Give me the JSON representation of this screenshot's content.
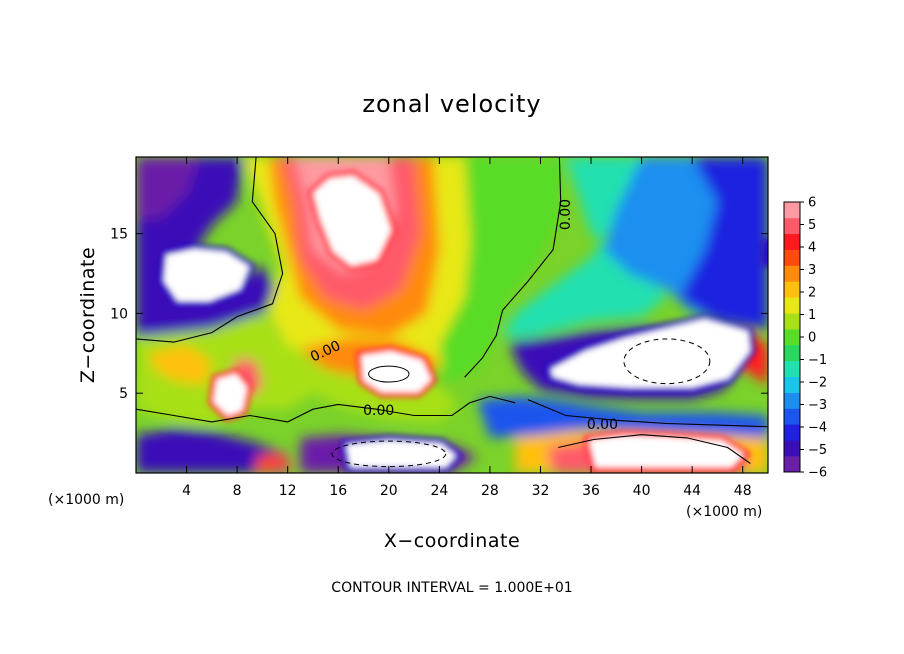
{
  "chart_data": {
    "type": "heatmap",
    "title": "zonal velocity",
    "xlabel": "X−coordinate",
    "ylabel": "Z−coordinate",
    "x_scale_note": "(×1000 m)",
    "z_scale_note": "(×1000 m)",
    "footer": "CONTOUR INTERVAL = 1.000E+01",
    "xlim": [
      0,
      50
    ],
    "ylim": [
      0,
      19.8
    ],
    "x_ticks": [
      4,
      8,
      12,
      16,
      20,
      24,
      28,
      32,
      36,
      40,
      44,
      48
    ],
    "y_ticks": [
      5,
      10,
      15
    ],
    "colorbar": {
      "min": -6,
      "max": 6,
      "ticks": [
        6,
        5,
        4,
        3,
        2,
        1,
        0,
        -1,
        -2,
        -3,
        -4,
        -5,
        -6
      ],
      "colors": [
        "#6a1fa8",
        "#3a0fb8",
        "#1f20e0",
        "#1b55ee",
        "#1e8ff0",
        "#19c6ea",
        "#20e0b0",
        "#2ad860",
        "#58dc28",
        "#a8e018",
        "#e8e818",
        "#ffc010",
        "#ff8a0c",
        "#ff4a10",
        "#ff1a20",
        "#ff5a6a",
        "#ff9aa2"
      ]
    },
    "contour_labels": [
      {
        "text": "0.00",
        "x": 15,
        "y": 7.6,
        "rotation": -25
      },
      {
        "text": "0.00",
        "x": 19.2,
        "y": 3.9,
        "rotation": 0
      },
      {
        "text": "0.00",
        "x": 36.9,
        "y": 3.0,
        "rotation": 0
      },
      {
        "text": "0.00",
        "x": 34.0,
        "y": 16.2,
        "rotation": -90
      }
    ],
    "field_regions": [
      {
        "v": -4.6,
        "pts": [
          [
            0,
            19.8
          ],
          [
            8.5,
            19.8
          ],
          [
            8,
            17
          ],
          [
            6,
            15.5
          ],
          [
            4,
            13
          ],
          [
            5,
            11.5
          ],
          [
            8,
            12
          ],
          [
            10,
            13
          ],
          [
            11,
            11.5
          ],
          [
            10,
            10
          ],
          [
            6,
            9
          ],
          [
            2,
            8.5
          ],
          [
            0,
            8.5
          ]
        ]
      },
      {
        "v": -5.6,
        "pts": [
          [
            0,
            19.8
          ],
          [
            5,
            19.8
          ],
          [
            4,
            17.5
          ],
          [
            2,
            16
          ],
          [
            0,
            15.8
          ]
        ]
      },
      {
        "v": 1.2,
        "pts": [
          [
            8.5,
            19.8
          ],
          [
            26,
            19.8
          ],
          [
            26.5,
            14
          ],
          [
            26,
            9
          ],
          [
            24,
            6.5
          ],
          [
            20,
            6
          ],
          [
            15,
            7
          ],
          [
            12,
            8
          ],
          [
            10.5,
            10
          ],
          [
            11.5,
            13
          ],
          [
            10,
            16.5
          ]
        ]
      },
      {
        "v": 3.0,
        "pts": [
          [
            10.5,
            19.8
          ],
          [
            23.5,
            19.8
          ],
          [
            24,
            14
          ],
          [
            23,
            10
          ],
          [
            20,
            8.5
          ],
          [
            16,
            9
          ],
          [
            13,
            11
          ],
          [
            12,
            14
          ],
          [
            11,
            17
          ]
        ]
      },
      {
        "v": 4.6,
        "pts": [
          [
            11.5,
            19.8
          ],
          [
            22,
            19.8
          ],
          [
            22.5,
            15
          ],
          [
            21,
            11.5
          ],
          [
            18,
            10.2
          ],
          [
            15,
            11
          ],
          [
            13,
            13.5
          ],
          [
            12.5,
            17
          ]
        ]
      },
      {
        "v": 5.6,
        "pts": [
          [
            12.5,
            19.8
          ],
          [
            20,
            19.8
          ],
          [
            20.5,
            16.5
          ],
          [
            19,
            13.5
          ],
          [
            16.5,
            12.5
          ],
          [
            14,
            14
          ],
          [
            13.5,
            17
          ]
        ]
      },
      {
        "v": 0.3,
        "pts": [
          [
            26,
            19.8
          ],
          [
            34,
            19.8
          ],
          [
            33.5,
            16
          ],
          [
            32,
            13.5
          ],
          [
            29.5,
            11
          ],
          [
            28.5,
            8.5
          ],
          [
            27,
            6.5
          ],
          [
            24.5,
            5.5
          ],
          [
            24,
            8
          ],
          [
            26,
            11
          ],
          [
            26.5,
            15
          ]
        ]
      },
      {
        "v": -1.2,
        "pts": [
          [
            34,
            19.8
          ],
          [
            40,
            19.8
          ],
          [
            38,
            16
          ],
          [
            36,
            13.5
          ],
          [
            33,
            11.8
          ],
          [
            30,
            10
          ],
          [
            29,
            8.5
          ],
          [
            31,
            8.5
          ],
          [
            36,
            9.5
          ],
          [
            40,
            9.8
          ],
          [
            42,
            11
          ],
          [
            40,
            13
          ],
          [
            36,
            15
          ]
        ]
      },
      {
        "v": -2.8,
        "pts": [
          [
            40,
            19.8
          ],
          [
            50,
            19.8
          ],
          [
            50,
            11
          ],
          [
            47,
            9.5
          ],
          [
            44,
            10
          ],
          [
            42,
            11.5
          ],
          [
            39,
            12.5
          ],
          [
            37,
            14
          ],
          [
            38,
            16.5
          ]
        ]
      },
      {
        "v": -4.0,
        "pts": [
          [
            44,
            19.8
          ],
          [
            50,
            19.8
          ],
          [
            50,
            9
          ],
          [
            46,
            9.5
          ],
          [
            43,
            11
          ],
          [
            45,
            14
          ],
          [
            46,
            17
          ]
        ]
      },
      {
        "v": 0.6,
        "pts": [
          [
            0,
            8.5
          ],
          [
            6,
            9
          ],
          [
            10,
            10
          ],
          [
            12,
            8
          ],
          [
            15,
            7
          ],
          [
            20,
            6
          ],
          [
            24,
            5.5
          ],
          [
            25.5,
            4.2
          ],
          [
            24,
            3.2
          ],
          [
            20,
            3.4
          ],
          [
            16,
            4.2
          ],
          [
            14,
            5
          ],
          [
            12,
            4
          ],
          [
            9,
            4
          ],
          [
            6,
            3
          ],
          [
            3,
            3.2
          ],
          [
            0,
            4
          ]
        ]
      },
      {
        "v": 2.4,
        "pts": [
          [
            1,
            7.5
          ],
          [
            4,
            8
          ],
          [
            6,
            7
          ],
          [
            5.5,
            5.5
          ],
          [
            3,
            5.8
          ],
          [
            1.5,
            6.5
          ]
        ]
      },
      {
        "v": 3.0,
        "pts": [
          [
            13,
            7.8
          ],
          [
            17,
            8.5
          ],
          [
            21,
            8.2
          ],
          [
            24,
            7
          ],
          [
            23,
            6
          ],
          [
            19,
            5.8
          ],
          [
            15,
            6.5
          ]
        ]
      },
      {
        "v": 5.2,
        "pts": [
          [
            8,
            7.2
          ],
          [
            9.5,
            7
          ],
          [
            10,
            5.5
          ],
          [
            9.2,
            4.8
          ],
          [
            8,
            5.3
          ],
          [
            7.6,
            6.3
          ]
        ]
      },
      {
        "v": -3.4,
        "pts": [
          [
            27,
            4.6
          ],
          [
            30.5,
            4.8
          ],
          [
            33,
            4.6
          ],
          [
            36,
            4.2
          ],
          [
            40,
            3.8
          ],
          [
            46,
            3.8
          ],
          [
            50,
            3.6
          ],
          [
            50,
            2.2
          ],
          [
            46,
            2.4
          ],
          [
            40,
            2.6
          ],
          [
            36,
            2.8
          ],
          [
            32,
            2.4
          ],
          [
            28,
            2.2
          ]
        ]
      },
      {
        "v": -5.0,
        "pts": [
          [
            29.5,
            8.2
          ],
          [
            33,
            8.5
          ],
          [
            36,
            8.9
          ],
          [
            40,
            9.2
          ],
          [
            44,
            9.0
          ],
          [
            47,
            8.1
          ],
          [
            48,
            6.8
          ],
          [
            46.5,
            5.2
          ],
          [
            44,
            4.6
          ],
          [
            40,
            4.6
          ],
          [
            36,
            4.7
          ],
          [
            32,
            5.2
          ],
          [
            30.5,
            6.4
          ]
        ]
      },
      {
        "v": -5.6,
        "pts": [
          [
            13,
            2.2
          ],
          [
            16,
            2.4
          ],
          [
            20,
            2.2
          ],
          [
            25,
            1.8
          ],
          [
            27,
            1.0
          ],
          [
            25,
            0
          ],
          [
            13,
            0
          ]
        ]
      },
      {
        "v": 2.2,
        "pts": [
          [
            30,
            2.2
          ],
          [
            34,
            2.6
          ],
          [
            40,
            2.6
          ],
          [
            46,
            2.4
          ],
          [
            50,
            2.2
          ],
          [
            50,
            0
          ],
          [
            30,
            0
          ]
        ]
      },
      {
        "v": 4.8,
        "pts": [
          [
            32.5,
            1.6
          ],
          [
            36,
            2.0
          ],
          [
            40,
            2.0
          ],
          [
            45,
            1.6
          ],
          [
            48.5,
            0.9
          ],
          [
            48,
            0
          ],
          [
            33,
            0
          ]
        ]
      },
      {
        "v": -4.8,
        "pts": [
          [
            0,
            2.4
          ],
          [
            3,
            2.8
          ],
          [
            6,
            2.6
          ],
          [
            9,
            2.0
          ],
          [
            12,
            1.2
          ],
          [
            12,
            0
          ],
          [
            0,
            0
          ]
        ]
      },
      {
        "v": 3.8,
        "pts": [
          [
            9.5,
            1.0
          ],
          [
            11.5,
            1.3
          ],
          [
            12.5,
            0.3
          ],
          [
            9.5,
            0
          ]
        ]
      },
      {
        "v": 4.2,
        "pts": [
          [
            45,
            8.3
          ],
          [
            48.5,
            8.8
          ],
          [
            50,
            8.0
          ],
          [
            50,
            5.5
          ],
          [
            48.5,
            6.3
          ]
        ]
      }
    ],
    "saturated_regions": [
      {
        "sign": "positive",
        "pts": [
          [
            13.8,
            17.6
          ],
          [
            15.2,
            18.6
          ],
          [
            17.2,
            18.8
          ],
          [
            19.4,
            17.6
          ],
          [
            20.4,
            15.2
          ],
          [
            19.2,
            13.2
          ],
          [
            17.0,
            12.8
          ],
          [
            15.4,
            13.8
          ],
          [
            14.4,
            15.8
          ]
        ]
      },
      {
        "sign": "negative",
        "pts": [
          [
            2.2,
            13.8
          ],
          [
            4.6,
            14.2
          ],
          [
            7.2,
            14.0
          ],
          [
            9.2,
            13.0
          ],
          [
            8.4,
            11.4
          ],
          [
            5.8,
            10.6
          ],
          [
            3.2,
            10.6
          ],
          [
            2.0,
            12.0
          ]
        ]
      },
      {
        "sign": "positive",
        "pts": [
          [
            17.6,
            7.5
          ],
          [
            20.2,
            7.8
          ],
          [
            22.8,
            7.2
          ],
          [
            23.6,
            5.8
          ],
          [
            22.4,
            4.9
          ],
          [
            19.4,
            4.9
          ],
          [
            17.8,
            5.7
          ]
        ]
      },
      {
        "sign": "positive",
        "pts": [
          [
            6.2,
            6.0
          ],
          [
            8.0,
            6.4
          ],
          [
            9.0,
            5.4
          ],
          [
            8.6,
            3.8
          ],
          [
            7.2,
            3.4
          ],
          [
            5.9,
            4.4
          ]
        ]
      },
      {
        "sign": "negative",
        "pts": [
          [
            32.6,
            6.6
          ],
          [
            35.5,
            7.8
          ],
          [
            38.6,
            8.6
          ],
          [
            41.8,
            9.2
          ],
          [
            45.0,
            9.8
          ],
          [
            48.6,
            9.0
          ],
          [
            48.8,
            7.6
          ],
          [
            47.0,
            5.8
          ],
          [
            44.0,
            5.2
          ],
          [
            39.0,
            5.2
          ],
          [
            35.0,
            5.4
          ],
          [
            32.8,
            5.9
          ]
        ]
      },
      {
        "sign": "positive",
        "pts": [
          [
            35.6,
            2.2
          ],
          [
            38.6,
            2.5
          ],
          [
            42.2,
            2.4
          ],
          [
            46.4,
            2.2
          ],
          [
            48.4,
            1.2
          ],
          [
            47.2,
            0.2
          ],
          [
            36.2,
            0.2
          ]
        ]
      },
      {
        "sign": "negative",
        "pts": [
          [
            16.4,
            1.9
          ],
          [
            20.0,
            2.2
          ],
          [
            24.2,
            2.0
          ],
          [
            25.6,
            1.1
          ],
          [
            24.6,
            0.2
          ],
          [
            16.8,
            0.2
          ]
        ]
      },
      {
        "sign": "negative",
        "pts": [
          [
            49.7,
            14.4
          ],
          [
            50,
            14.6
          ],
          [
            50,
            13.0
          ],
          [
            49.6,
            13.2
          ]
        ]
      }
    ]
  }
}
